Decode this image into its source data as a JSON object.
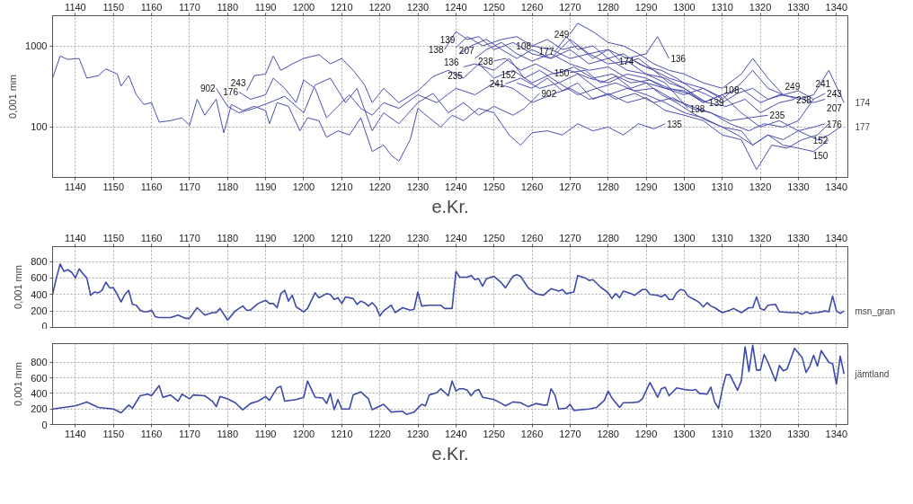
{
  "chart_data": [
    {
      "type": "line",
      "xlabel": "e.Kr.",
      "ylabel": "0,001 mm",
      "log": true,
      "grid": true,
      "legend": false,
      "xlim": [
        1134,
        1343
      ],
      "xticks": [
        1140,
        1150,
        1160,
        1170,
        1180,
        1190,
        1200,
        1210,
        1220,
        1230,
        1240,
        1250,
        1260,
        1270,
        1280,
        1290,
        1300,
        1310,
        1320,
        1330,
        1340
      ],
      "x2lim": [
        1134,
        1343
      ],
      "x2ticks": [
        1140,
        1150,
        1160,
        1170,
        1180,
        1190,
        1200,
        1210,
        1220,
        1230,
        1240,
        1250,
        1260,
        1270,
        1280,
        1290,
        1300,
        1310,
        1320,
        1330,
        1340
      ],
      "ylim": [
        24,
        2350
      ],
      "yticks": [
        100,
        1000
      ],
      "series": [
        {
          "name": "135",
          "color": "#4a4fb0",
          "x": [
            1134,
            1136,
            1138,
            1141,
            1143,
            1146,
            1148,
            1151,
            1152,
            1154,
            1156,
            1158,
            1160,
            1162,
            1165,
            1168,
            1170,
            1172,
            1174,
            1177,
            1179,
            1181,
            1184,
            1187,
            1190,
            1191,
            1193,
            1196,
            1199,
            1201,
            1204,
            1206,
            1209,
            1212,
            1215,
            1218,
            1221,
            1223,
            1225,
            1228,
            1230,
            1233,
            1236,
            1239,
            1242,
            1246,
            1250,
            1254,
            1257,
            1260,
            1264,
            1268,
            1272,
            1276,
            1280,
            1284,
            1288,
            1292,
            1295
          ],
          "values": [
            400,
            750,
            680,
            700,
            400,
            430,
            520,
            450,
            320,
            430,
            250,
            190,
            200,
            115,
            120,
            130,
            105,
            220,
            140,
            220,
            85,
            190,
            160,
            180,
            160,
            110,
            200,
            180,
            90,
            130,
            120,
            75,
            90,
            80,
            130,
            50,
            60,
            45,
            38,
            70,
            170,
            130,
            100,
            140,
            120,
            170,
            150,
            80,
            60,
            85,
            90,
            80,
            110,
            90,
            100,
            80,
            110,
            95,
            110
          ]
        },
        {
          "name": "902",
          "color": "#4a4fb0",
          "x": [
            1177,
            1180,
            1183,
            1187,
            1191,
            1195,
            1200,
            1203,
            1207,
            1211,
            1214,
            1218,
            1221,
            1225,
            1230,
            1234,
            1238,
            1242,
            1246,
            1250,
            1255,
            1258,
            1262
          ],
          "values": [
            300,
            180,
            150,
            170,
            200,
            240,
            150,
            330,
            400,
            200,
            300,
            90,
            150,
            110,
            200,
            260,
            150,
            200,
            140,
            180,
            140,
            170,
            260
          ]
        },
        {
          "name": "176",
          "color": "#4a4fb0",
          "x": [
            1183,
            1186,
            1190,
            1192,
            1195,
            1198,
            1200,
            1203,
            1206,
            1209,
            1212,
            1215,
            1218,
            1221,
            1225,
            1230,
            1235,
            1240,
            1245,
            1250,
            1255,
            1260,
            1265,
            1270,
            1275,
            1280,
            1285,
            1290,
            1295,
            1300,
            1305,
            1310,
            1315,
            1318,
            1322,
            1326,
            1330,
            1334,
            1337
          ],
          "values": [
            270,
            220,
            250,
            400,
            300,
            200,
            380,
            300,
            130,
            180,
            250,
            170,
            140,
            200,
            170,
            250,
            200,
            300,
            250,
            350,
            300,
            200,
            250,
            300,
            220,
            250,
            300,
            250,
            200,
            150,
            130,
            100,
            90,
            60,
            80,
            70,
            90,
            100,
            110
          ]
        },
        {
          "name": "243",
          "color": "#4a4fb0",
          "x": [
            1185,
            1187,
            1190,
            1192,
            1194,
            1197,
            1200,
            1204,
            1207,
            1210,
            1213,
            1216,
            1218,
            1221,
            1225,
            1230,
            1234,
            1238,
            1242,
            1246,
            1250,
            1255,
            1260,
            1265,
            1270,
            1275,
            1280,
            1285,
            1290,
            1295,
            1300,
            1305,
            1310,
            1315,
            1318,
            1322,
            1326,
            1330,
            1334,
            1337
          ],
          "values": [
            280,
            430,
            450,
            750,
            500,
            600,
            700,
            780,
            600,
            700,
            500,
            330,
            200,
            300,
            200,
            280,
            420,
            500,
            400,
            600,
            400,
            500,
            350,
            450,
            500,
            400,
            350,
            450,
            400,
            300,
            250,
            300,
            220,
            350,
            500,
            300,
            250,
            280,
            220,
            260
          ]
        },
        {
          "name": "138",
          "color": "#4a4fb0",
          "x": [
            1237,
            1240,
            1243,
            1246,
            1250,
            1255,
            1260,
            1265,
            1270,
            1275,
            1280,
            1285,
            1290,
            1295,
            1301
          ],
          "values": [
            900,
            1500,
            1200,
            1300,
            900,
            1100,
            800,
            700,
            900,
            600,
            700,
            500,
            450,
            350,
            170
          ]
        },
        {
          "name": "139",
          "color": "#4a4fb0",
          "x": [
            1240,
            1243,
            1247,
            1252,
            1256,
            1260,
            1265,
            1270,
            1275,
            1280,
            1285,
            1290,
            1295,
            1300,
            1306
          ],
          "values": [
            950,
            1300,
            1000,
            1200,
            1300,
            1000,
            900,
            700,
            800,
            600,
            650,
            450,
            400,
            300,
            200
          ]
        },
        {
          "name": "136",
          "color": "#4a4fb0",
          "x": [
            1241,
            1244,
            1248,
            1252,
            1256,
            1260,
            1265,
            1270,
            1275,
            1280,
            1285,
            1290,
            1293,
            1296
          ],
          "values": [
            800,
            1000,
            1200,
            900,
            700,
            900,
            700,
            1200,
            800,
            900,
            700,
            800,
            1300,
            700
          ]
        },
        {
          "name": "207",
          "color": "#4a4fb0",
          "x": [
            1245,
            1248,
            1252,
            1256,
            1260,
            1265,
            1270,
            1275,
            1280,
            1285,
            1290,
            1295,
            1300,
            1305,
            1310,
            1315,
            1320,
            1325,
            1330,
            1334,
            1337
          ],
          "values": [
            700,
            900,
            1100,
            800,
            650,
            800,
            600,
            500,
            550,
            400,
            350,
            300,
            280,
            200,
            250,
            300,
            200,
            250,
            230,
            200,
            220
          ]
        },
        {
          "name": "235",
          "color": "#4a4fb0",
          "x": [
            1242,
            1245,
            1250,
            1254,
            1258,
            1262,
            1267,
            1272,
            1277,
            1282,
            1287,
            1292,
            1297,
            1302,
            1307,
            1312,
            1317,
            1322
          ],
          "values": [
            550,
            600,
            500,
            700,
            400,
            500,
            350,
            450,
            300,
            350,
            280,
            300,
            220,
            180,
            150,
            120,
            130,
            140
          ]
        },
        {
          "name": "238",
          "color": "#4a4fb0",
          "x": [
            1250,
            1253,
            1257,
            1261,
            1266,
            1271,
            1276,
            1281,
            1286,
            1291,
            1296,
            1301,
            1306,
            1311,
            1316,
            1320,
            1325,
            1329
          ],
          "values": [
            650,
            700,
            500,
            600,
            450,
            550,
            400,
            450,
            350,
            380,
            300,
            260,
            200,
            180,
            220,
            150,
            200,
            220
          ]
        },
        {
          "name": "241",
          "color": "#4a4fb0",
          "x": [
            1253,
            1257,
            1262,
            1267,
            1272,
            1277,
            1282,
            1287,
            1292,
            1297,
            1302,
            1307,
            1312,
            1317,
            1321,
            1326,
            1330,
            1334
          ],
          "values": [
            340,
            400,
            300,
            350,
            250,
            300,
            220,
            260,
            200,
            230,
            170,
            150,
            110,
            90,
            110,
            100,
            120,
            220
          ]
        },
        {
          "name": "152",
          "color": "#4a4fb0",
          "x": [
            1256,
            1260,
            1264,
            1268,
            1272,
            1276,
            1280,
            1285,
            1290,
            1295,
            1300,
            1305,
            1310,
            1315,
            1319,
            1323,
            1327,
            1331,
            1335,
            1338
          ],
          "values": [
            350,
            300,
            400,
            280,
            350,
            220,
            260,
            200,
            230,
            160,
            140,
            120,
            80,
            70,
            30,
            60,
            55,
            70,
            80,
            110
          ]
        },
        {
          "name": "108",
          "color": "#4a4fb0",
          "x": [
            1260,
            1264,
            1268,
            1272,
            1276,
            1280,
            1284,
            1288,
            1292,
            1296,
            1300,
            1305,
            1310
          ],
          "values": [
            1000,
            1200,
            900,
            1000,
            700,
            900,
            600,
            700,
            500,
            400,
            350,
            300,
            230
          ]
        },
        {
          "name": "177",
          "color": "#4a4fb0",
          "x": [
            1266,
            1269,
            1272,
            1276,
            1280,
            1284,
            1288,
            1292,
            1296,
            1300,
            1305,
            1310,
            1315,
            1320,
            1325,
            1330,
            1335,
            1338,
            1341
          ],
          "values": [
            850,
            1300,
            900,
            1000,
            700,
            800,
            600,
            500,
            350,
            300,
            200,
            250,
            150,
            100,
            120,
            90,
            70,
            80,
            100
          ]
        },
        {
          "name": "249",
          "color": "#4a4fb0",
          "x": [
            1270,
            1272,
            1276,
            1280,
            1284,
            1288,
            1292,
            1296,
            1300,
            1305,
            1310,
            1315,
            1318,
            1322,
            1326
          ],
          "values": [
            1400,
            1900,
            1500,
            1100,
            1000,
            800,
            600,
            500,
            450,
            350,
            300,
            450,
            700,
            400,
            250
          ]
        },
        {
          "name": "150",
          "color": "#4a4fb0",
          "x": [
            1270,
            1274,
            1278,
            1282,
            1286,
            1290,
            1294,
            1298,
            1302,
            1306,
            1310,
            1314,
            1318,
            1322,
            1326,
            1330,
            1334,
            1338
          ],
          "values": [
            470,
            500,
            350,
            420,
            300,
            350,
            250,
            200,
            150,
            120,
            100,
            80,
            60,
            80,
            60,
            55,
            50,
            70
          ]
        },
        {
          "name": "174",
          "color": "#4a4fb0",
          "x": [
            1287,
            1290,
            1294,
            1298,
            1302,
            1306,
            1310,
            1314,
            1318,
            1322,
            1326,
            1330,
            1334,
            1338,
            1342
          ],
          "values": [
            650,
            550,
            500,
            400,
            300,
            250,
            200,
            260,
            300,
            220,
            250,
            220,
            250,
            500,
            200
          ]
        }
      ]
    },
    {
      "type": "line",
      "ylabel": "0,001 mm",
      "grid": true,
      "legend": false,
      "xlim": [
        1134,
        1343
      ],
      "xticks": [
        1140,
        1150,
        1160,
        1170,
        1180,
        1190,
        1200,
        1210,
        1220,
        1230,
        1240,
        1250,
        1260,
        1270,
        1280,
        1290,
        1300,
        1310,
        1320,
        1330,
        1340
      ],
      "ylim": [
        0,
        980
      ],
      "yticks": [
        0,
        200,
        400,
        600,
        800
      ],
      "series": [
        {
          "name": "msn_gran",
          "color": "#3c4aa8",
          "x": [
            1134,
            1135,
            1136,
            1137,
            1138,
            1139,
            1140,
            1141,
            1142,
            1143,
            1144,
            1145,
            1146,
            1147,
            1148,
            1149,
            1150,
            1151,
            1152,
            1153,
            1154,
            1155,
            1156,
            1157,
            1158,
            1159,
            1160,
            1161,
            1162,
            1165,
            1167,
            1169,
            1170,
            1172,
            1174,
            1176,
            1177,
            1178,
            1180,
            1182,
            1184,
            1185,
            1186,
            1188,
            1190,
            1191,
            1192,
            1193,
            1194,
            1195,
            1196,
            1197,
            1198,
            1200,
            1201,
            1203,
            1204,
            1206,
            1207,
            1208,
            1209,
            1210,
            1211,
            1213,
            1214,
            1215,
            1216,
            1217,
            1218,
            1219,
            1220,
            1221,
            1223,
            1224,
            1226,
            1228,
            1229,
            1230,
            1231,
            1233,
            1236,
            1237,
            1239,
            1240,
            1241,
            1243,
            1244,
            1245,
            1246,
            1247,
            1248,
            1250,
            1252,
            1253,
            1255,
            1256,
            1257,
            1259,
            1261,
            1263,
            1265,
            1267,
            1268,
            1269,
            1271,
            1272,
            1274,
            1275,
            1276,
            1278,
            1280,
            1281,
            1282,
            1283,
            1284,
            1286,
            1287,
            1289,
            1290,
            1291,
            1293,
            1294,
            1295,
            1296,
            1297,
            1298,
            1299,
            1300,
            1301,
            1303,
            1304,
            1305,
            1306,
            1307,
            1308,
            1310,
            1312,
            1313,
            1315,
            1317,
            1318,
            1319,
            1320,
            1321,
            1322,
            1324,
            1325,
            1328,
            1330,
            1331,
            1332,
            1333,
            1335,
            1337,
            1338,
            1339,
            1340,
            1341,
            1342
          ],
          "values": [
            400,
            600,
            770,
            680,
            700,
            670,
            600,
            710,
            650,
            600,
            390,
            430,
            420,
            450,
            550,
            480,
            480,
            400,
            310,
            400,
            450,
            280,
            270,
            210,
            190,
            190,
            210,
            130,
            120,
            120,
            150,
            110,
            110,
            240,
            150,
            180,
            180,
            230,
            90,
            200,
            260,
            210,
            210,
            290,
            330,
            290,
            290,
            240,
            410,
            450,
            320,
            390,
            250,
            190,
            230,
            420,
            360,
            410,
            400,
            340,
            360,
            290,
            370,
            350,
            280,
            320,
            300,
            260,
            300,
            250,
            140,
            200,
            270,
            180,
            240,
            210,
            220,
            430,
            260,
            270,
            270,
            230,
            230,
            680,
            610,
            610,
            630,
            580,
            590,
            500,
            590,
            620,
            540,
            480,
            620,
            640,
            620,
            480,
            410,
            390,
            470,
            440,
            460,
            410,
            430,
            630,
            600,
            570,
            580,
            490,
            420,
            350,
            410,
            360,
            440,
            410,
            390,
            460,
            460,
            400,
            390,
            370,
            400,
            340,
            340,
            420,
            460,
            450,
            380,
            330,
            300,
            250,
            300,
            260,
            240,
            180,
            210,
            230,
            180,
            240,
            240,
            370,
            230,
            210,
            270,
            280,
            190,
            180,
            180,
            160,
            190,
            170,
            180,
            200,
            190,
            380,
            200,
            170,
            200
          ]
        }
      ]
    },
    {
      "type": "line",
      "xlabel": "e.Kr.",
      "ylabel": "0,001 mm",
      "grid": true,
      "legend": false,
      "xlim": [
        1134,
        1343
      ],
      "xticks": [
        1140,
        1150,
        1160,
        1170,
        1180,
        1190,
        1200,
        1210,
        1220,
        1230,
        1240,
        1250,
        1260,
        1270,
        1280,
        1290,
        1300,
        1310,
        1320,
        1330,
        1340
      ],
      "ylim": [
        0,
        1040
      ],
      "yticks": [
        0,
        200,
        400,
        600,
        800
      ],
      "series": [
        {
          "name": "jämtland",
          "color": "#3c4aa8",
          "x": [
            1134,
            1137,
            1140,
            1143,
            1146,
            1150,
            1152,
            1154,
            1155,
            1157,
            1159,
            1160,
            1162,
            1163,
            1165,
            1167,
            1168,
            1170,
            1171,
            1174,
            1176,
            1177,
            1178,
            1180,
            1182,
            1184,
            1186,
            1188,
            1190,
            1191,
            1193,
            1194,
            1195,
            1198,
            1200,
            1201,
            1203,
            1205,
            1206,
            1207,
            1208,
            1209,
            1210,
            1212,
            1213,
            1215,
            1217,
            1218,
            1221,
            1223,
            1226,
            1227,
            1229,
            1231,
            1232,
            1233,
            1235,
            1236,
            1238,
            1239,
            1240,
            1241,
            1242,
            1243,
            1244,
            1245,
            1246,
            1247,
            1248,
            1250,
            1252,
            1253,
            1255,
            1257,
            1259,
            1261,
            1263,
            1264,
            1265,
            1266,
            1267,
            1269,
            1270,
            1271,
            1273,
            1275,
            1277,
            1279,
            1280,
            1281,
            1283,
            1284,
            1286,
            1288,
            1289,
            1291,
            1292,
            1293,
            1294,
            1295,
            1296,
            1298,
            1300,
            1302,
            1303,
            1304,
            1306,
            1307,
            1308,
            1309,
            1310,
            1311,
            1312,
            1314,
            1315,
            1316,
            1317,
            1318,
            1319,
            1320,
            1321,
            1322,
            1324,
            1325,
            1326,
            1327,
            1329,
            1331,
            1332,
            1333,
            1334,
            1335,
            1336,
            1338,
            1339,
            1340,
            1341,
            1342
          ],
          "values": [
            200,
            220,
            240,
            290,
            220,
            200,
            150,
            250,
            210,
            370,
            390,
            370,
            500,
            350,
            380,
            300,
            390,
            330,
            380,
            370,
            300,
            230,
            360,
            330,
            280,
            190,
            270,
            300,
            360,
            310,
            470,
            490,
            300,
            320,
            350,
            560,
            350,
            340,
            270,
            400,
            190,
            320,
            200,
            200,
            380,
            420,
            330,
            190,
            260,
            160,
            170,
            130,
            160,
            260,
            240,
            380,
            410,
            460,
            370,
            560,
            430,
            460,
            460,
            440,
            370,
            430,
            450,
            350,
            340,
            320,
            270,
            240,
            290,
            280,
            230,
            270,
            250,
            250,
            460,
            380,
            200,
            210,
            260,
            180,
            190,
            200,
            220,
            310,
            430,
            340,
            220,
            280,
            280,
            290,
            330,
            540,
            450,
            350,
            460,
            480,
            370,
            470,
            450,
            440,
            450,
            400,
            390,
            480,
            290,
            210,
            450,
            640,
            640,
            440,
            560,
            1000,
            680,
            1020,
            700,
            700,
            900,
            800,
            560,
            760,
            690,
            710,
            980,
            860,
            670,
            750,
            890,
            750,
            950,
            800,
            780,
            520,
            880,
            650
          ]
        }
      ]
    }
  ]
}
